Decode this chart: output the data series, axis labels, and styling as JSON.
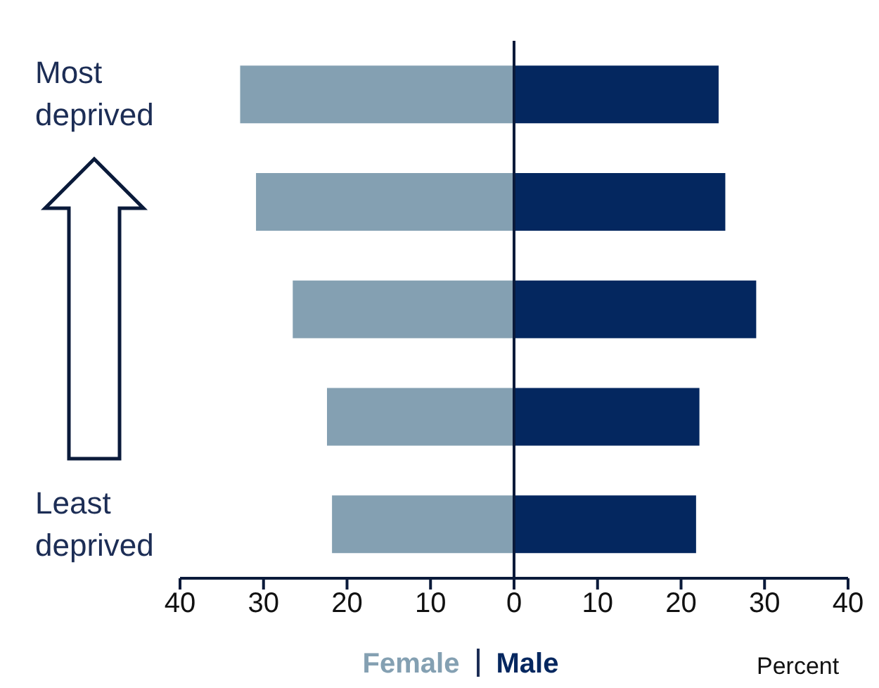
{
  "chart_data": {
    "type": "bar",
    "orientation": "horizontal",
    "stacked": true,
    "xlabel": "Percent",
    "categories": [
      "Most deprived",
      null,
      null,
      null,
      "Least deprived"
    ],
    "series": [
      {
        "name": "Female",
        "color": "#84a0b2",
        "values": [
          -32.8,
          -30.9,
          -26.5,
          -22.4,
          -21.8
        ]
      },
      {
        "name": "Male",
        "color": "#04275f",
        "values": [
          24.5,
          25.3,
          29.0,
          22.2,
          21.8
        ]
      }
    ],
    "xlim": [
      -40,
      40
    ],
    "xticks": [
      {
        "value": -40,
        "label": "40"
      },
      {
        "value": -30,
        "label": "30"
      },
      {
        "value": -20,
        "label": "20"
      },
      {
        "value": -10,
        "label": "10"
      },
      0,
      10,
      20,
      30,
      40
    ],
    "legend": "bottom",
    "grid": false
  }
}
